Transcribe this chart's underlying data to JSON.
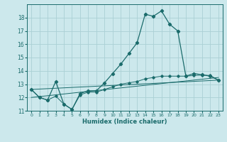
{
  "xlabel": "Humidex (Indice chaleur)",
  "background_color": "#cce8ec",
  "grid_color": "#aad0d5",
  "line_color": "#1a6b6b",
  "xlim": [
    -0.5,
    23.5
  ],
  "ylim": [
    11,
    19
  ],
  "yticks": [
    11,
    12,
    13,
    14,
    15,
    16,
    17,
    18
  ],
  "xticks": [
    0,
    1,
    2,
    3,
    4,
    5,
    6,
    7,
    8,
    9,
    10,
    11,
    12,
    13,
    14,
    15,
    16,
    17,
    18,
    19,
    20,
    21,
    22,
    23
  ],
  "series1_x": [
    0,
    1,
    2,
    3,
    4,
    5,
    6,
    7,
    8,
    9,
    10,
    11,
    12,
    13,
    14,
    15,
    16,
    17,
    18,
    19,
    20,
    21,
    22,
    23
  ],
  "series1_y": [
    12.6,
    12.0,
    11.8,
    13.2,
    11.5,
    11.1,
    12.3,
    12.5,
    12.5,
    13.1,
    13.8,
    14.5,
    15.3,
    16.1,
    18.25,
    18.1,
    18.5,
    17.5,
    17.0,
    13.6,
    13.8,
    13.7,
    13.6,
    13.3
  ],
  "series2_x": [
    0,
    1,
    2,
    3,
    4,
    5,
    6,
    7,
    8,
    9,
    10,
    11,
    12,
    13,
    14,
    15,
    16,
    17,
    18,
    19,
    20,
    21,
    22,
    23
  ],
  "series2_y": [
    12.6,
    12.0,
    11.8,
    12.1,
    11.5,
    11.1,
    12.2,
    12.4,
    12.4,
    12.6,
    12.8,
    13.0,
    13.1,
    13.2,
    13.4,
    13.5,
    13.6,
    13.6,
    13.6,
    13.6,
    13.65,
    13.68,
    13.65,
    13.3
  ],
  "series3_y": [
    12.6,
    13.3
  ],
  "series4_y": [
    12.0,
    13.5
  ]
}
